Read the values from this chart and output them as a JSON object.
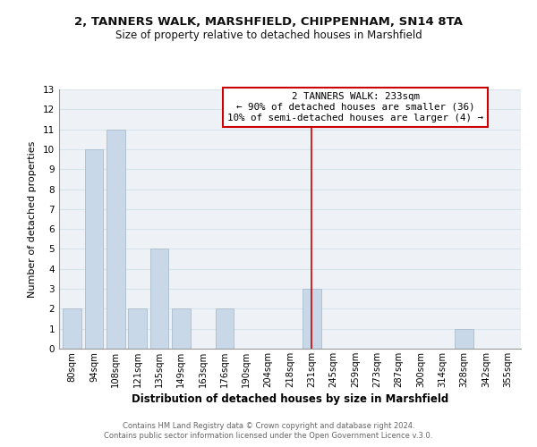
{
  "title1": "2, TANNERS WALK, MARSHFIELD, CHIPPENHAM, SN14 8TA",
  "title2": "Size of property relative to detached houses in Marshfield",
  "xlabel": "Distribution of detached houses by size in Marshfield",
  "ylabel": "Number of detached properties",
  "bar_labels": [
    "80sqm",
    "94sqm",
    "108sqm",
    "121sqm",
    "135sqm",
    "149sqm",
    "163sqm",
    "176sqm",
    "190sqm",
    "204sqm",
    "218sqm",
    "231sqm",
    "245sqm",
    "259sqm",
    "273sqm",
    "287sqm",
    "300sqm",
    "314sqm",
    "328sqm",
    "342sqm",
    "355sqm"
  ],
  "bar_heights": [
    2,
    10,
    11,
    2,
    5,
    2,
    0,
    2,
    0,
    0,
    0,
    3,
    0,
    0,
    0,
    0,
    0,
    0,
    1,
    0,
    0
  ],
  "bar_color": "#c8d8e8",
  "bar_edgecolor": "#aabccc",
  "redline_index": 11,
  "ylim": [
    0,
    13
  ],
  "yticks": [
    0,
    1,
    2,
    3,
    4,
    5,
    6,
    7,
    8,
    9,
    10,
    11,
    12,
    13
  ],
  "annotation_title": "2 TANNERS WALK: 233sqm",
  "annotation_line1": "← 90% of detached houses are smaller (36)",
  "annotation_line2": "10% of semi-detached houses are larger (4) →",
  "annotation_box_color": "#ffffff",
  "annotation_border_color": "#cc0000",
  "footer1": "Contains HM Land Registry data © Crown copyright and database right 2024.",
  "footer2": "Contains public sector information licensed under the Open Government Licence v.3.0.",
  "grid_color": "#d8e4ec",
  "background_color": "#eef2f6",
  "plot_bg_color": "#eef2f6"
}
